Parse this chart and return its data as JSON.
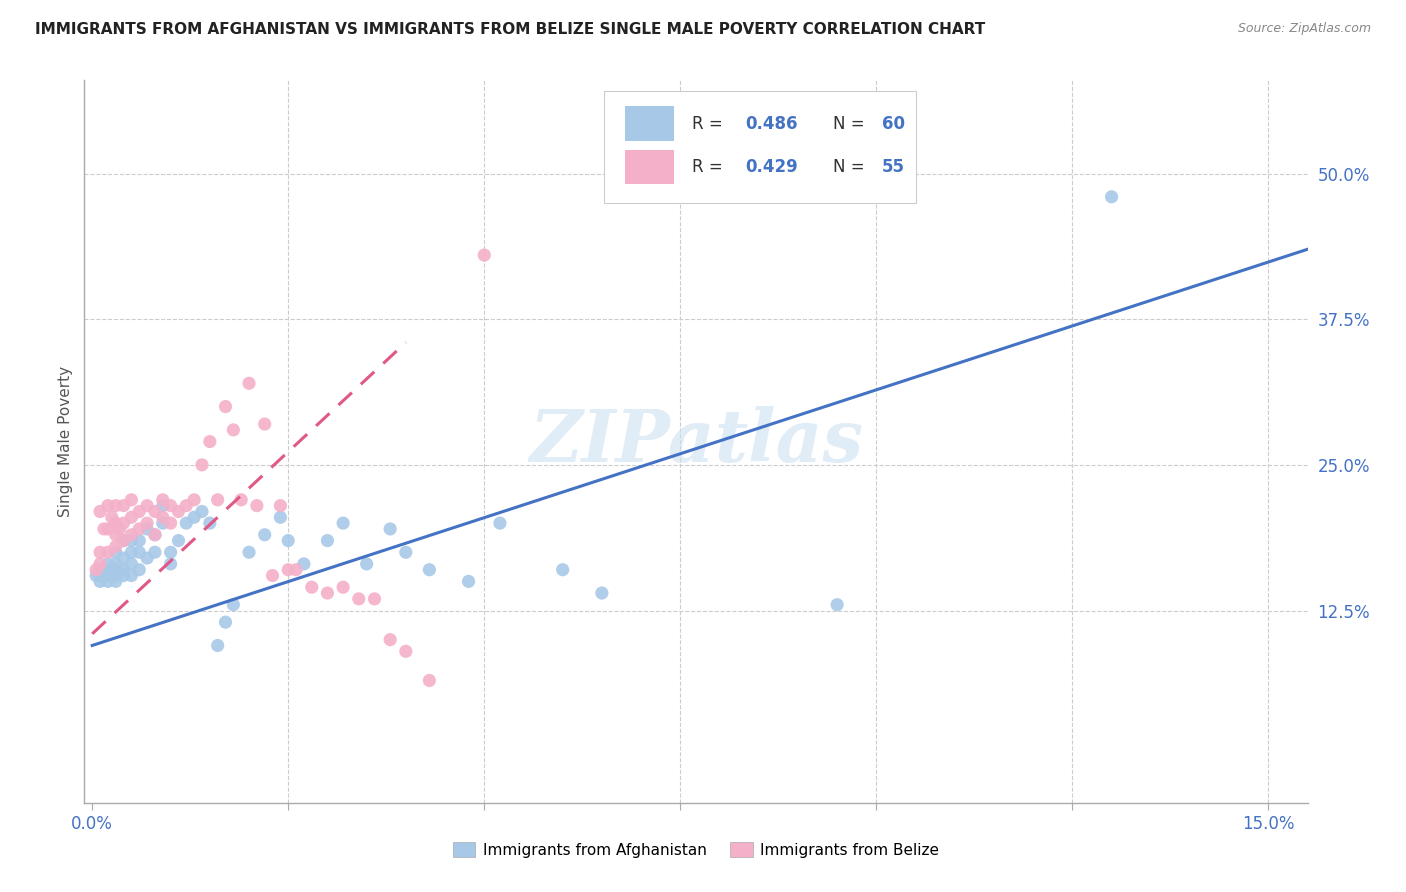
{
  "title": "IMMIGRANTS FROM AFGHANISTAN VS IMMIGRANTS FROM BELIZE SINGLE MALE POVERTY CORRELATION CHART",
  "source": "Source: ZipAtlas.com",
  "ylabel": "Single Male Poverty",
  "xlim": [
    -0.001,
    0.155
  ],
  "ylim": [
    -0.04,
    0.58
  ],
  "xtick_positions": [
    0.0,
    0.025,
    0.05,
    0.075,
    0.1,
    0.125,
    0.15
  ],
  "xtick_labels": [
    "0.0%",
    "",
    "",
    "",
    "",
    "",
    "15.0%"
  ],
  "ytick_vals_right": [
    0.125,
    0.25,
    0.375,
    0.5
  ],
  "ytick_labels_right": [
    "12.5%",
    "25.0%",
    "37.5%",
    "50.0%"
  ],
  "afghanistan_color": "#a8c8e8",
  "belize_color": "#f4b0c8",
  "afghanistan_line_color": "#4472c4",
  "belize_line_color": "#e05888",
  "belize_dashed_color": "#e090a8",
  "legend_r_afghanistan": "0.486",
  "legend_n_afghanistan": "60",
  "legend_r_belize": "0.429",
  "legend_n_belize": "55",
  "watermark": "ZIPatlas",
  "afg_line_x0": 0.0,
  "afg_line_y0": 0.095,
  "afg_line_x1": 0.155,
  "afg_line_y1": 0.435,
  "bel_line_x0": 0.0,
  "bel_line_y0": 0.105,
  "bel_line_x1": 0.04,
  "bel_line_y1": 0.355,
  "afghanistan_scatter_x": [
    0.0005,
    0.001,
    0.001,
    0.001,
    0.0015,
    0.002,
    0.002,
    0.002,
    0.002,
    0.0025,
    0.003,
    0.003,
    0.003,
    0.003,
    0.003,
    0.0035,
    0.004,
    0.004,
    0.004,
    0.004,
    0.005,
    0.005,
    0.005,
    0.005,
    0.006,
    0.006,
    0.006,
    0.007,
    0.007,
    0.008,
    0.008,
    0.009,
    0.009,
    0.01,
    0.01,
    0.011,
    0.012,
    0.013,
    0.014,
    0.015,
    0.016,
    0.017,
    0.018,
    0.02,
    0.022,
    0.024,
    0.025,
    0.027,
    0.03,
    0.032,
    0.035,
    0.038,
    0.04,
    0.043,
    0.048,
    0.052,
    0.06,
    0.065,
    0.095,
    0.13
  ],
  "afghanistan_scatter_y": [
    0.155,
    0.15,
    0.16,
    0.155,
    0.16,
    0.155,
    0.15,
    0.16,
    0.165,
    0.158,
    0.15,
    0.155,
    0.16,
    0.165,
    0.175,
    0.158,
    0.155,
    0.16,
    0.17,
    0.185,
    0.155,
    0.165,
    0.175,
    0.185,
    0.16,
    0.175,
    0.185,
    0.17,
    0.195,
    0.175,
    0.19,
    0.2,
    0.215,
    0.165,
    0.175,
    0.185,
    0.2,
    0.205,
    0.21,
    0.2,
    0.095,
    0.115,
    0.13,
    0.175,
    0.19,
    0.205,
    0.185,
    0.165,
    0.185,
    0.2,
    0.165,
    0.195,
    0.175,
    0.16,
    0.15,
    0.2,
    0.16,
    0.14,
    0.13,
    0.48
  ],
  "belize_scatter_x": [
    0.0005,
    0.001,
    0.001,
    0.001,
    0.0015,
    0.002,
    0.002,
    0.002,
    0.0025,
    0.003,
    0.003,
    0.003,
    0.003,
    0.0035,
    0.004,
    0.004,
    0.004,
    0.005,
    0.005,
    0.005,
    0.006,
    0.006,
    0.007,
    0.007,
    0.008,
    0.008,
    0.009,
    0.009,
    0.01,
    0.01,
    0.011,
    0.012,
    0.013,
    0.014,
    0.015,
    0.016,
    0.017,
    0.018,
    0.019,
    0.02,
    0.021,
    0.022,
    0.023,
    0.024,
    0.025,
    0.026,
    0.028,
    0.03,
    0.032,
    0.034,
    0.036,
    0.038,
    0.04,
    0.043,
    0.05
  ],
  "belize_scatter_y": [
    0.16,
    0.165,
    0.175,
    0.21,
    0.195,
    0.175,
    0.195,
    0.215,
    0.205,
    0.18,
    0.19,
    0.2,
    0.215,
    0.195,
    0.185,
    0.2,
    0.215,
    0.19,
    0.205,
    0.22,
    0.195,
    0.21,
    0.2,
    0.215,
    0.19,
    0.21,
    0.205,
    0.22,
    0.2,
    0.215,
    0.21,
    0.215,
    0.22,
    0.25,
    0.27,
    0.22,
    0.3,
    0.28,
    0.22,
    0.32,
    0.215,
    0.285,
    0.155,
    0.215,
    0.16,
    0.16,
    0.145,
    0.14,
    0.145,
    0.135,
    0.135,
    0.1,
    0.09,
    0.065,
    0.43
  ]
}
